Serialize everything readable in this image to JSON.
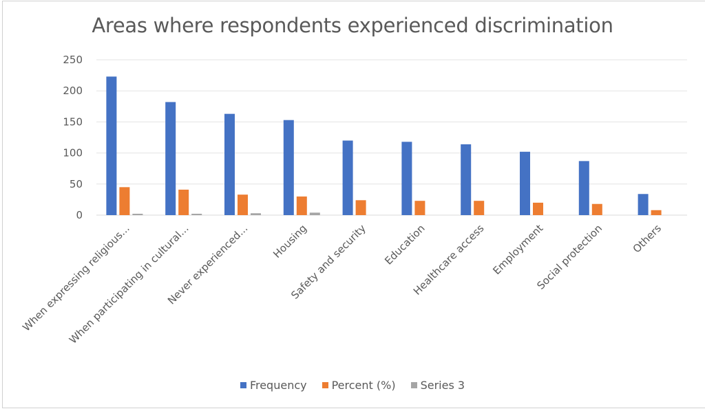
{
  "chart_data": {
    "type": "bar",
    "title": "Areas where respondents experienced discrimination",
    "xlabel": "",
    "ylabel": "",
    "ylim": [
      0,
      250
    ],
    "yticks": [
      0,
      50,
      100,
      150,
      200,
      250
    ],
    "grid": true,
    "legend_position": "bottom",
    "categories": [
      "When expressing religious...",
      "When participating in cultural...",
      "Never experienced...",
      "Housing",
      "Safety and security",
      "Education",
      "Healthcare access",
      "Employment",
      "Social protection",
      "Others"
    ],
    "series": [
      {
        "name": "Frequency",
        "color": "#4472c4",
        "values": [
          223,
          182,
          163,
          153,
          120,
          118,
          114,
          102,
          87,
          34
        ]
      },
      {
        "name": "Percent (%)",
        "color": "#ed7d31",
        "values": [
          45,
          41,
          33,
          30,
          24,
          23,
          23,
          20,
          18,
          8
        ]
      },
      {
        "name": "Series 3",
        "color": "#a5a5a5",
        "values": [
          1,
          1,
          3,
          4,
          0,
          0,
          0,
          0,
          0,
          0
        ]
      }
    ]
  }
}
